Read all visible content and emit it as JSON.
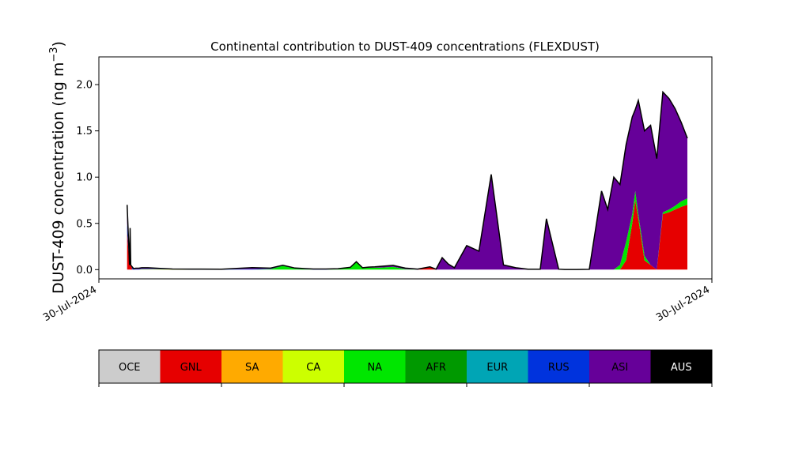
{
  "chart_data": [
    {
      "type": "area",
      "title": "Continental contribution to DUST-409 concentrations (FLEXDUST)",
      "ylabel": "DUST-409 concentration (ng m",
      "ylabel_sup": "−3",
      "ylabel_close": ")",
      "xlabel": "",
      "xlim": [
        0,
        100
      ],
      "ylim": [
        -0.1,
        2.3
      ],
      "x_tick_labels": [
        {
          "x": 0,
          "label": "30-Jul-2024"
        },
        {
          "x": 100,
          "label": "30-Jul-2024"
        }
      ],
      "y_ticks": [
        {
          "value": 0.0,
          "label": "0.0"
        },
        {
          "value": 0.5,
          "label": "0.5"
        },
        {
          "value": 1.0,
          "label": "1.0"
        },
        {
          "value": 1.5,
          "label": "1.5"
        },
        {
          "value": 2.0,
          "label": "2.0"
        }
      ],
      "grid": false,
      "stacked": true,
      "x": [
        4.6,
        5.0,
        5.1,
        5.2,
        5.5,
        5.7,
        6.0,
        6.5,
        7,
        8,
        10,
        12,
        15,
        20,
        25,
        28,
        30,
        32,
        35,
        37,
        39,
        41,
        42,
        43,
        44,
        45,
        46,
        48,
        50,
        52,
        54,
        55,
        56,
        57,
        58,
        60,
        62,
        64,
        66,
        68,
        70,
        71,
        72,
        73,
        75,
        76,
        78,
        80,
        82,
        83,
        84,
        85,
        86,
        87,
        87.5,
        88,
        89,
        90,
        91,
        92,
        93,
        94,
        95,
        96
      ],
      "series": [
        {
          "name": "GNL",
          "color": "#e60000",
          "values": [
            0.4,
            0.05,
            0.45,
            0.05,
            0,
            0,
            0,
            0,
            0,
            0,
            0,
            0,
            0,
            0,
            0,
            0,
            0,
            0,
            0,
            0,
            0,
            0,
            0,
            0,
            0,
            0,
            0,
            0,
            0,
            0,
            0.03,
            0,
            0,
            0,
            0,
            0,
            0,
            0,
            0,
            0,
            0,
            0,
            0,
            0,
            0,
            0,
            0,
            0,
            0,
            0,
            0,
            0,
            0.1,
            0.5,
            0.75,
            0.55,
            0.1,
            0.05,
            0,
            0.6,
            0.62,
            0.65,
            0.68,
            0.7
          ]
        },
        {
          "name": "CA",
          "color": "#ccff00",
          "values": [
            0,
            0,
            0,
            0,
            0,
            0,
            0,
            0,
            0.005,
            0.005,
            0.005,
            0.003,
            0.002,
            0.001,
            0.001,
            0.001,
            0.001,
            0.001,
            0.001,
            0.001,
            0.001,
            0.001,
            0.001,
            0.001,
            0.001,
            0.001,
            0.001,
            0.001,
            0.001,
            0.001,
            0,
            0,
            0,
            0,
            0,
            0,
            0,
            0,
            0,
            0,
            0,
            0,
            0,
            0,
            0,
            0,
            0,
            0,
            0,
            0,
            0,
            0,
            0,
            0,
            0,
            0,
            0,
            0,
            0,
            0,
            0,
            0,
            0,
            0
          ]
        },
        {
          "name": "NA",
          "color": "#00e600",
          "values": [
            0,
            0,
            0,
            0,
            0,
            0,
            0,
            0,
            0,
            0,
            0,
            0,
            0,
            0,
            0,
            0.005,
            0.04,
            0.01,
            0,
            0,
            0.005,
            0.02,
            0.08,
            0.015,
            0.02,
            0.02,
            0.02,
            0.03,
            0.005,
            0,
            0,
            0,
            0,
            0,
            0,
            0,
            0,
            0,
            0,
            0,
            0,
            0,
            0,
            0,
            0,
            0,
            0,
            0,
            0,
            0,
            0,
            0.05,
            0.2,
            0.1,
            0.1,
            0.05,
            0.05,
            0,
            0,
            0.02,
            0.03,
            0.04,
            0.06,
            0.07
          ]
        },
        {
          "name": "RUS",
          "color": "#0033dd",
          "values": [
            0.1,
            0,
            0,
            0,
            0.02,
            0.005,
            0.005,
            0.005,
            0.005,
            0.005,
            0.003,
            0.002,
            0.002,
            0.002,
            0.005,
            0.003,
            0.002,
            0.002,
            0.002,
            0.002,
            0,
            0,
            0,
            0,
            0,
            0,
            0,
            0,
            0,
            0,
            0,
            0,
            0,
            0,
            0,
            0,
            0,
            0,
            0,
            0,
            0,
            0,
            0,
            0,
            0,
            0,
            0,
            0,
            0,
            0,
            0,
            0,
            0,
            0,
            0,
            0,
            0,
            0,
            0,
            0,
            0,
            0,
            0,
            0
          ]
        },
        {
          "name": "ASI",
          "color": "#660099",
          "values": [
            0.2,
            0,
            0,
            0,
            0.005,
            0.005,
            0.01,
            0.01,
            0.01,
            0.01,
            0.005,
            0.002,
            0.002,
            0.002,
            0.015,
            0.007,
            0.004,
            0.004,
            0.004,
            0.004,
            0.004,
            0.004,
            0.004,
            0.004,
            0.006,
            0.01,
            0.015,
            0.015,
            0.01,
            0.005,
            0,
            0.005,
            0.13,
            0.06,
            0.02,
            0.26,
            0.2,
            1.03,
            0.05,
            0.02,
            0.005,
            0.005,
            0.005,
            0.55,
            0.005,
            0.002,
            0.002,
            0.003,
            0.85,
            0.65,
            1.0,
            0.87,
            1.05,
            1.05,
            0.88,
            1.23,
            1.35,
            1.51,
            1.2,
            1.3,
            1.2,
            1.05,
            0.85,
            0.65
          ]
        }
      ],
      "legend": [
        {
          "name": "OCE",
          "color": "#cccccc"
        },
        {
          "name": "GNL",
          "color": "#e60000"
        },
        {
          "name": "SA",
          "color": "#ffaa00"
        },
        {
          "name": "CA",
          "color": "#ccff00"
        },
        {
          "name": "NA",
          "color": "#00e600"
        },
        {
          "name": "AFR",
          "color": "#009900"
        },
        {
          "name": "EUR",
          "color": "#00a5b5"
        },
        {
          "name": "RUS",
          "color": "#0033dd"
        },
        {
          "name": "ASI",
          "color": "#660099"
        },
        {
          "name": "AUS",
          "color": "#000000",
          "text_color": "#ffffff"
        }
      ],
      "legend_placement": "bottom"
    }
  ]
}
